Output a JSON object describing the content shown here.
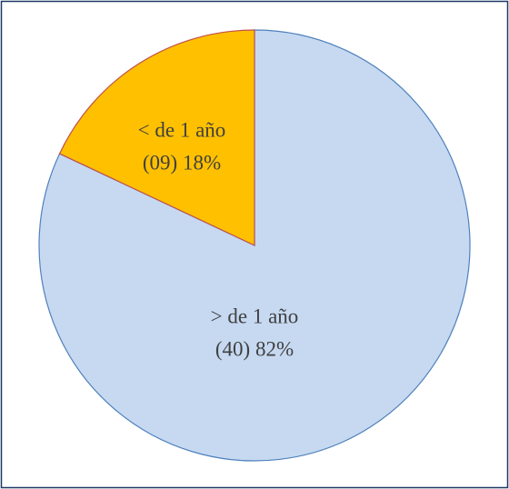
{
  "chart_data": {
    "type": "pie",
    "categories": [
      "> de 1 año",
      "< de 1 año"
    ],
    "values": [
      82,
      18
    ],
    "value_labels": [
      "(40) 82%",
      "(09) 18%"
    ],
    "colors": [
      "#c6d9f1",
      "#ffc000"
    ],
    "edge_colors": [
      "#4f81bd",
      "#c0504d"
    ]
  }
}
